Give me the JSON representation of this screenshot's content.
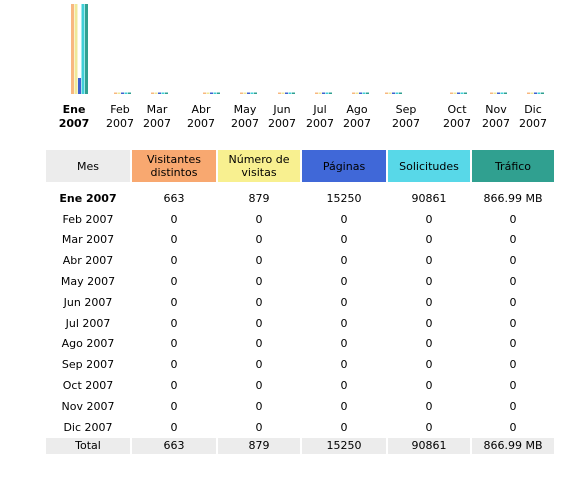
{
  "chart_data": {
    "type": "bar",
    "categories": [
      {
        "month": "Ene",
        "year": "2007"
      },
      {
        "month": "Feb",
        "year": "2007"
      },
      {
        "month": "Mar",
        "year": "2007"
      },
      {
        "month": "Abr",
        "year": "2007"
      },
      {
        "month": "May",
        "year": "2007"
      },
      {
        "month": "Jun",
        "year": "2007"
      },
      {
        "month": "Jul",
        "year": "2007"
      },
      {
        "month": "Ago",
        "year": "2007"
      },
      {
        "month": "Sep",
        "year": "2007"
      },
      {
        "month": "Oct",
        "year": "2007"
      },
      {
        "month": "Nov",
        "year": "2007"
      },
      {
        "month": "Dic",
        "year": "2007"
      }
    ],
    "series": [
      {
        "key": "visitantes",
        "color": "#f8b880",
        "values": [
          663,
          0,
          0,
          0,
          0,
          0,
          0,
          0,
          0,
          0,
          0,
          0
        ]
      },
      {
        "key": "visitas",
        "color": "#f0e898",
        "values": [
          879,
          0,
          0,
          0,
          0,
          0,
          0,
          0,
          0,
          0,
          0,
          0
        ]
      },
      {
        "key": "paginas",
        "color": "#4060d0",
        "values": [
          15250,
          0,
          0,
          0,
          0,
          0,
          0,
          0,
          0,
          0,
          0,
          0
        ]
      },
      {
        "key": "solicitudes",
        "color": "#40d0d8",
        "values": [
          90861,
          0,
          0,
          0,
          0,
          0,
          0,
          0,
          0,
          0,
          0,
          0
        ]
      },
      {
        "key": "trafico",
        "color": "#30a090",
        "values": [
          866.99,
          0,
          0,
          0,
          0,
          0,
          0,
          0,
          0,
          0,
          0,
          0
        ]
      }
    ],
    "grid": false,
    "legend": "none"
  },
  "table": {
    "headers": {
      "mes": "Mes",
      "visitantes": "Visitantes distintos",
      "visitas": "Número de visitas",
      "paginas": "Páginas",
      "solicitudes": "Solicitudes",
      "trafico": "Tráfico"
    },
    "header_colors": {
      "mes": "#ececec",
      "visitantes": "#f8a870",
      "visitas": "#f8f090",
      "paginas": "#4068d8",
      "solicitudes": "#58d8e8",
      "trafico": "#30a090"
    },
    "rows": [
      {
        "mes": "Ene 2007",
        "visitantes": "663",
        "visitas": "879",
        "paginas": "15250",
        "solicitudes": "90861",
        "trafico": "866.99 MB",
        "current": true
      },
      {
        "mes": "Feb 2007",
        "visitantes": "0",
        "visitas": "0",
        "paginas": "0",
        "solicitudes": "0",
        "trafico": "0"
      },
      {
        "mes": "Mar 2007",
        "visitantes": "0",
        "visitas": "0",
        "paginas": "0",
        "solicitudes": "0",
        "trafico": "0"
      },
      {
        "mes": "Abr 2007",
        "visitantes": "0",
        "visitas": "0",
        "paginas": "0",
        "solicitudes": "0",
        "trafico": "0"
      },
      {
        "mes": "May 2007",
        "visitantes": "0",
        "visitas": "0",
        "paginas": "0",
        "solicitudes": "0",
        "trafico": "0"
      },
      {
        "mes": "Jun 2007",
        "visitantes": "0",
        "visitas": "0",
        "paginas": "0",
        "solicitudes": "0",
        "trafico": "0"
      },
      {
        "mes": "Jul 2007",
        "visitantes": "0",
        "visitas": "0",
        "paginas": "0",
        "solicitudes": "0",
        "trafico": "0"
      },
      {
        "mes": "Ago 2007",
        "visitantes": "0",
        "visitas": "0",
        "paginas": "0",
        "solicitudes": "0",
        "trafico": "0"
      },
      {
        "mes": "Sep 2007",
        "visitantes": "0",
        "visitas": "0",
        "paginas": "0",
        "solicitudes": "0",
        "trafico": "0"
      },
      {
        "mes": "Oct 2007",
        "visitantes": "0",
        "visitas": "0",
        "paginas": "0",
        "solicitudes": "0",
        "trafico": "0"
      },
      {
        "mes": "Nov 2007",
        "visitantes": "0",
        "visitas": "0",
        "paginas": "0",
        "solicitudes": "0",
        "trafico": "0"
      },
      {
        "mes": "Dic 2007",
        "visitantes": "0",
        "visitas": "0",
        "paginas": "0",
        "solicitudes": "0",
        "trafico": "0"
      }
    ],
    "total": {
      "mes": "Total",
      "visitantes": "663",
      "visitas": "879",
      "paginas": "15250",
      "solicitudes": "90861",
      "trafico": "866.99 MB"
    }
  }
}
